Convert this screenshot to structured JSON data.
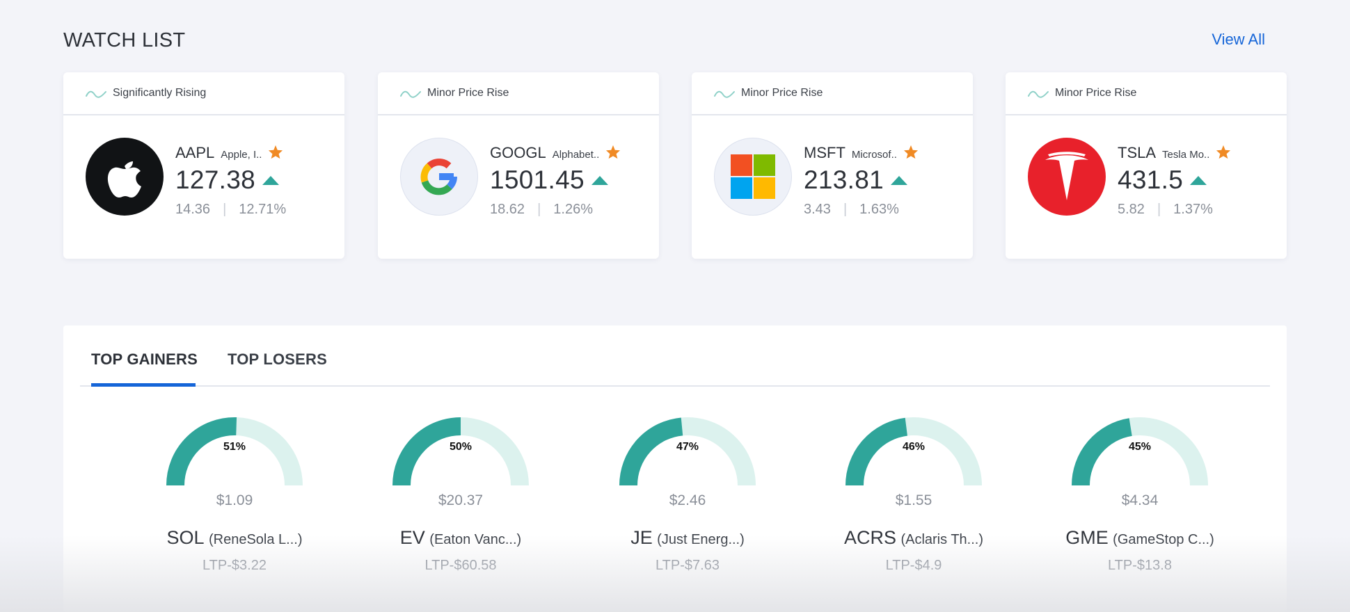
{
  "watchlist": {
    "title": "WATCH LIST",
    "view_all": "View All",
    "cards": [
      {
        "trend": "Significantly Rising",
        "ticker": "AAPL",
        "company": "Apple, I..",
        "price": "127.38",
        "change": "14.36",
        "change_pct": "12.71%",
        "logo": "apple-logo",
        "trend_icon": "wave-icon",
        "favorite_icon": "star-icon",
        "direction_icon": "up-triangle-icon"
      },
      {
        "trend": "Minor Price Rise",
        "ticker": "GOOGL",
        "company": "Alphabet..",
        "price": "1501.45",
        "change": "18.62",
        "change_pct": "1.26%",
        "logo": "google-logo",
        "trend_icon": "wave-icon",
        "favorite_icon": "star-icon",
        "direction_icon": "up-triangle-icon"
      },
      {
        "trend": "Minor Price Rise",
        "ticker": "MSFT",
        "company": "Microsof..",
        "price": "213.81",
        "change": "3.43",
        "change_pct": "1.63%",
        "logo": "microsoft-logo",
        "trend_icon": "wave-icon",
        "favorite_icon": "star-icon",
        "direction_icon": "up-triangle-icon"
      },
      {
        "trend": "Minor Price Rise",
        "ticker": "TSLA",
        "company": "Tesla Mo..",
        "price": "431.5",
        "change": "5.82",
        "change_pct": "1.37%",
        "logo": "tesla-logo",
        "trend_icon": "wave-icon",
        "favorite_icon": "star-icon",
        "direction_icon": "up-triangle-icon"
      }
    ]
  },
  "movers": {
    "tabs": [
      {
        "label": "TOP GAINERS",
        "active": true
      },
      {
        "label": "TOP LOSERS",
        "active": false
      }
    ],
    "items": [
      {
        "pct_label": "51%",
        "pct": 51,
        "price": "$1.09",
        "symbol": "SOL",
        "company": "(ReneSola L...)",
        "ltp": "LTP-$3.22"
      },
      {
        "pct_label": "50%",
        "pct": 50,
        "price": "$20.37",
        "symbol": "EV",
        "company": "(Eaton Vanc...)",
        "ltp": "LTP-$60.58"
      },
      {
        "pct_label": "47%",
        "pct": 47,
        "price": "$2.46",
        "symbol": "JE",
        "company": "(Just Energ...)",
        "ltp": "LTP-$7.63"
      },
      {
        "pct_label": "46%",
        "pct": 46,
        "price": "$1.55",
        "symbol": "ACRS",
        "company": "(Aclaris Th...)",
        "ltp": "LTP-$4.9"
      },
      {
        "pct_label": "45%",
        "pct": 45,
        "price": "$4.34",
        "symbol": "GME",
        "company": "(GameStop C...)",
        "ltp": "LTP-$13.8"
      }
    ]
  },
  "colors": {
    "accent": "#1565d8",
    "gauge_fill": "#2fa59a",
    "gauge_track": "#dcf2ee",
    "star": "#f08a24",
    "trend_wave": "#8fd1c8"
  }
}
